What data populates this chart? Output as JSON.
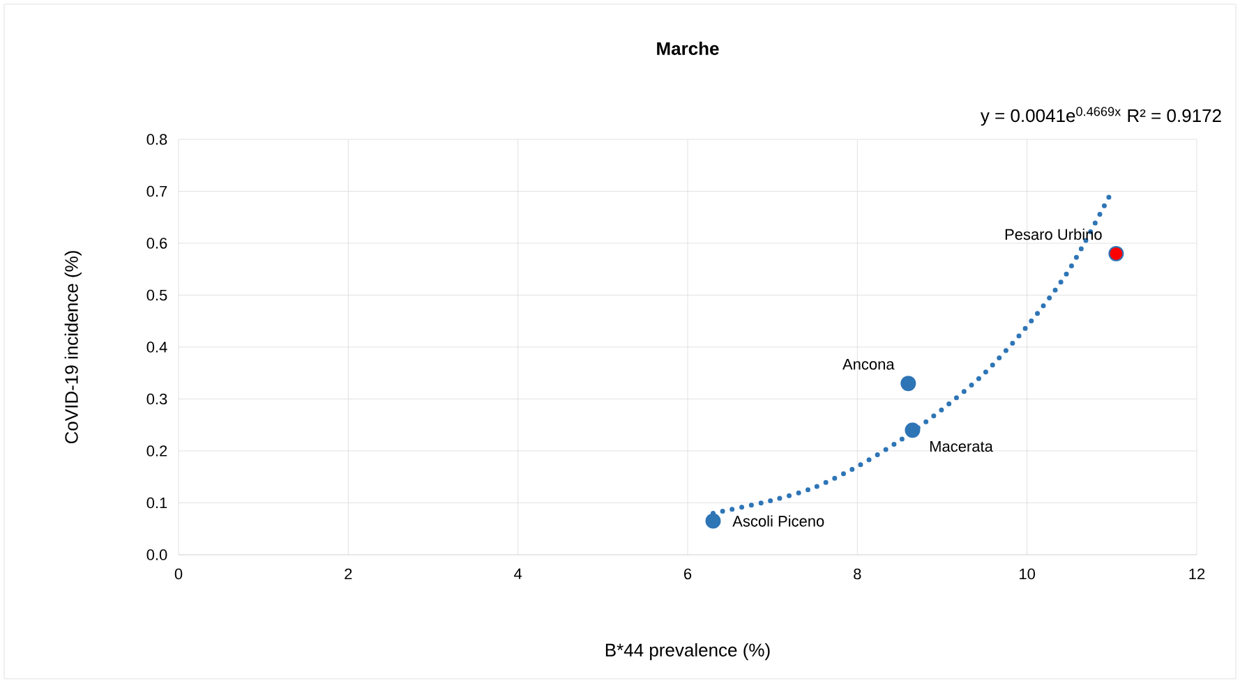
{
  "chart_data": {
    "type": "scatter",
    "title": "Marche",
    "xlabel": "B*44 prevalence (%)",
    "ylabel": "CoVID-19 incidence (%)",
    "xlim": [
      0,
      12
    ],
    "xticks": [
      0,
      2,
      4,
      6,
      8,
      10,
      12
    ],
    "ylim": [
      0,
      0.8
    ],
    "yticks": [
      {
        "value": 0,
        "label": "0.0"
      },
      {
        "value": 0.1,
        "label": "0.1"
      },
      {
        "value": 0.2,
        "label": "0.2"
      },
      {
        "value": 0.3,
        "label": "0.3"
      },
      {
        "value": 0.4,
        "label": "0.4"
      },
      {
        "value": 0.5,
        "label": "0.5"
      },
      {
        "value": 0.6,
        "label": "0.6"
      },
      {
        "value": 0.7,
        "label": "0.7"
      },
      {
        "value": 0.8,
        "label": "0.8"
      }
    ],
    "grid": true,
    "series": [
      {
        "color": "#2e75b6",
        "colors": [
          "#2e75b6",
          "#2e75b6",
          "#2e75b6",
          "#ff0000"
        ],
        "marker": "circle",
        "x": [
          6.3,
          8.6,
          8.65,
          11.05
        ],
        "values": [
          0.065,
          0.33,
          0.24,
          0.58
        ]
      },
      {
        "type": "line",
        "color": "#2e75b6",
        "line_style": "dotted",
        "marker": "none",
        "x": [
          6.3,
          7,
          7.5,
          8,
          8.5,
          9,
          9.5,
          10,
          10.5,
          11
        ],
        "values": [
          0.08,
          0.105,
          0.13,
          0.17,
          0.22,
          0.28,
          0.35,
          0.44,
          0.55,
          0.7
        ]
      }
    ],
    "annotations": [
      {
        "text": "Ascoli Piceno",
        "x": 6.3,
        "y": 0.065
      },
      {
        "text": "Ancona",
        "x": 8.6,
        "y": 0.33
      },
      {
        "text": "Macerata",
        "x": 8.65,
        "y": 0.24
      },
      {
        "text": "Pesaro Urbino",
        "x": 11.05,
        "y": 0.58
      },
      "y = 0.0041e$^{0.4669x}$    R² = 0.9172"
    ]
  }
}
